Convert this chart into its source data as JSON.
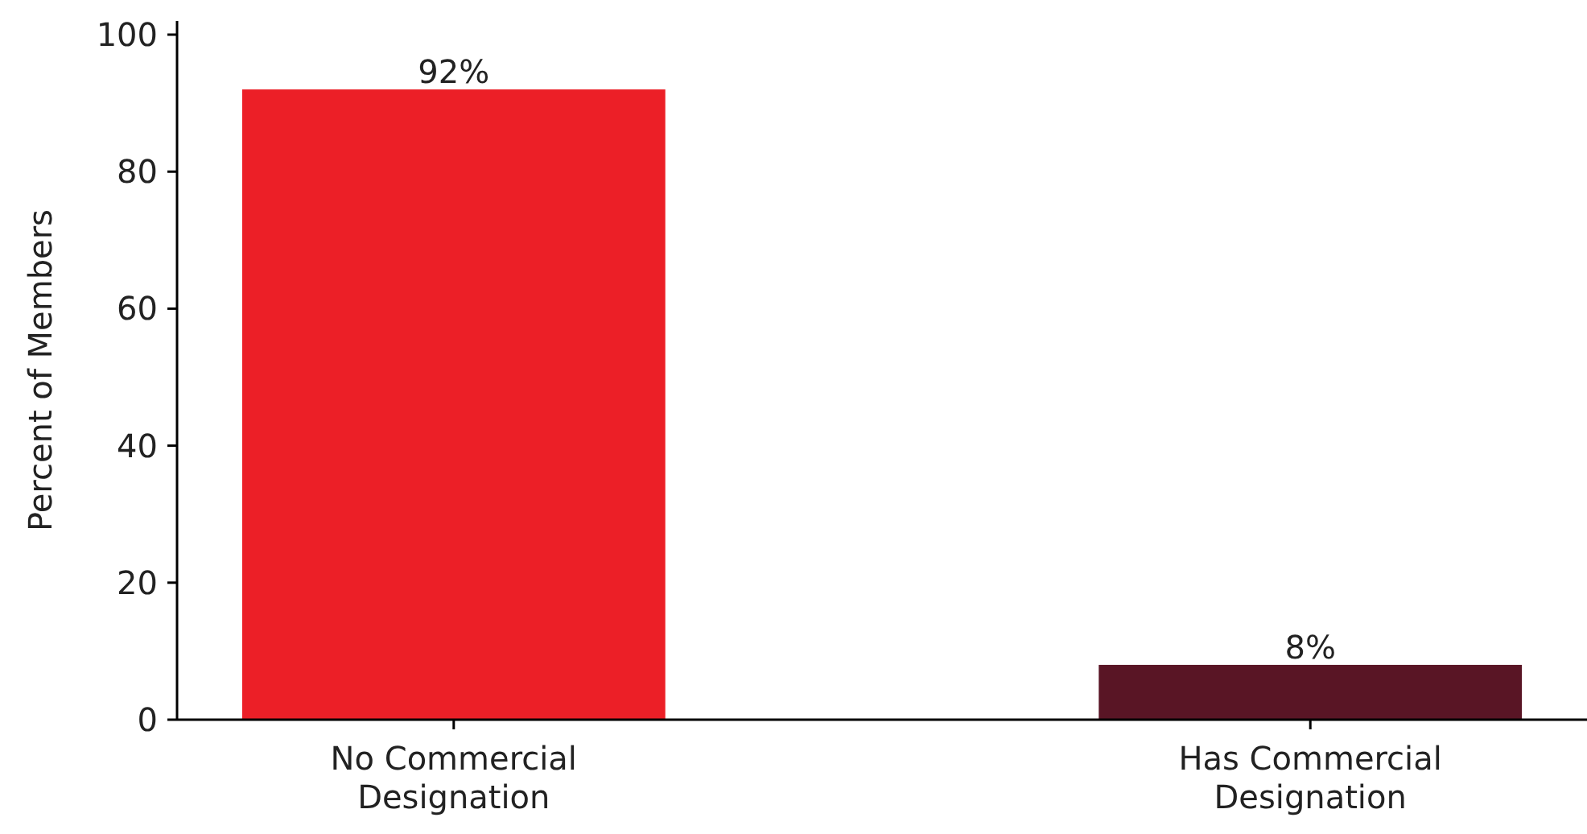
{
  "chart_data": {
    "type": "bar",
    "ylabel": "Percent of Members",
    "categories": [
      "No Commercial\nDesignation",
      "Has Commercial\nDesignation"
    ],
    "values": [
      92,
      8
    ],
    "colors": [
      "#ec1f27",
      "#591525"
    ],
    "value_labels": [
      "92%",
      "8%"
    ],
    "ylim": [
      0,
      102
    ],
    "yticks": [
      0,
      20,
      40,
      60,
      80,
      100
    ],
    "grid": false
  }
}
